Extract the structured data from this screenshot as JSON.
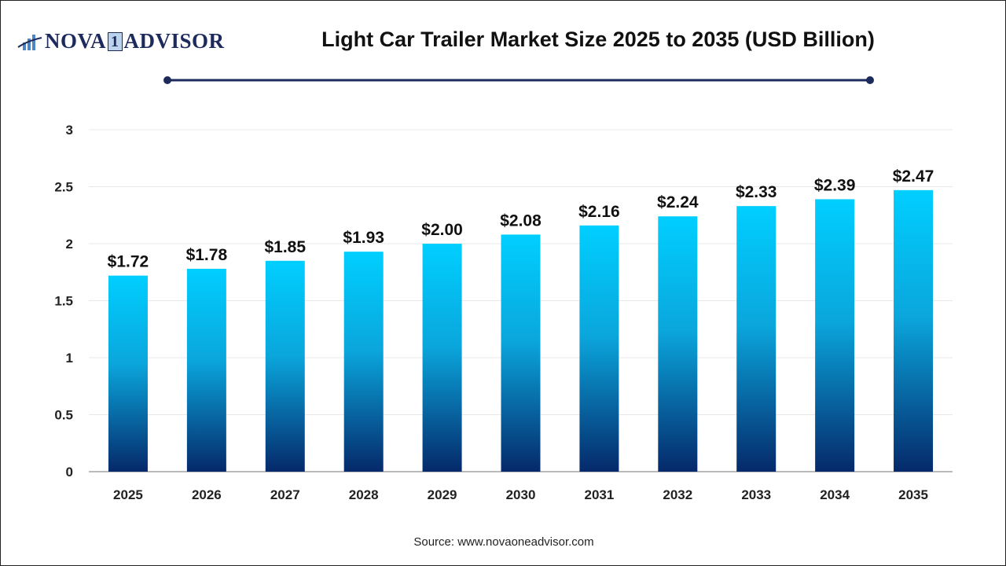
{
  "logo": {
    "text_left": "NOVA",
    "text_mid": "1",
    "text_right": "ADVISOR"
  },
  "title": "Light Car Trailer Market Size 2025 to 2035  (USD Billion)",
  "source": "Source: www.novaoneadvisor.com",
  "colors": {
    "bar_top": "#00cfff",
    "bar_bottom": "#05296a",
    "title_rule": "#1d2a5c"
  },
  "chart_data": {
    "type": "bar",
    "title": "Light Car Trailer Market Size 2025 to 2035  (USD Billion)",
    "categories": [
      "2025",
      "2026",
      "2027",
      "2028",
      "2029",
      "2030",
      "2031",
      "2032",
      "2033",
      "2034",
      "2035"
    ],
    "values": [
      1.72,
      1.78,
      1.85,
      1.93,
      2.0,
      2.08,
      2.16,
      2.24,
      2.33,
      2.39,
      2.47
    ],
    "data_labels": [
      "$1.72",
      "$1.78",
      "$1.85",
      "$1.93",
      "$2.00",
      "$2.08",
      "$2.16",
      "$2.24",
      "$2.33",
      "$2.39",
      "$2.47"
    ],
    "yticks": [
      "0",
      "0.5",
      "1",
      "1.5",
      "2",
      "2.5",
      "3"
    ],
    "ylim": [
      0,
      3
    ],
    "grid": true,
    "xlabel": "",
    "ylabel": ""
  }
}
